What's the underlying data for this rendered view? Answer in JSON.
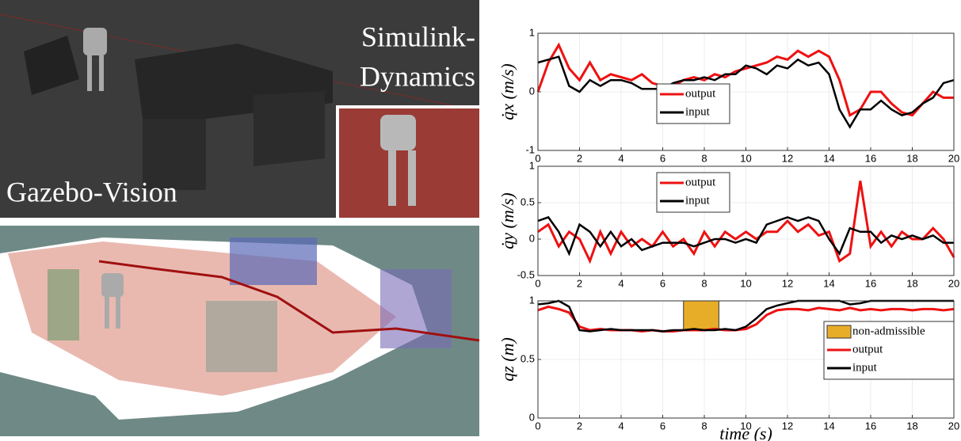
{
  "images": {
    "simulink_label": [
      "Simulink-",
      "Dynamics"
    ],
    "gazebo_label": "Gazebo-Vision"
  },
  "chart_data": [
    {
      "type": "line",
      "ylabel": "q̇x (m/s)",
      "legend": "lower center",
      "grid": true,
      "x": [
        0,
        0.5,
        1,
        1.5,
        2,
        2.5,
        3,
        3.5,
        4,
        4.5,
        5,
        5.5,
        6,
        6.5,
        7,
        7.5,
        8,
        8.5,
        9,
        9.5,
        10,
        10.5,
        11,
        11.5,
        12,
        12.5,
        13,
        13.5,
        14,
        14.5,
        15,
        15.5,
        16,
        16.5,
        17,
        17.5,
        18,
        18.5,
        19,
        19.5,
        20
      ],
      "xlim": [
        0,
        20
      ],
      "xticks": [
        0,
        2,
        4,
        6,
        8,
        10,
        12,
        14,
        16,
        18,
        20
      ],
      "ylim": [
        -1,
        1
      ],
      "yticks": [
        -1,
        0,
        1
      ],
      "series": [
        {
          "name": "output",
          "color": "#ee1111",
          "values": [
            0,
            0.5,
            0.8,
            0.4,
            0.2,
            0.5,
            0.2,
            0.3,
            0.25,
            0.2,
            0.3,
            0.15,
            0.1,
            0.1,
            0.2,
            0.25,
            0.2,
            0.3,
            0.25,
            0.35,
            0.4,
            0.45,
            0.5,
            0.6,
            0.55,
            0.7,
            0.6,
            0.7,
            0.6,
            0.2,
            -0.4,
            -0.3,
            0,
            0,
            -0.2,
            -0.35,
            -0.4,
            -0.2,
            0,
            -0.1,
            -0.1
          ]
        },
        {
          "name": "input",
          "color": "#000000",
          "values": [
            0.5,
            0.55,
            0.6,
            0.1,
            0,
            0.2,
            0.1,
            0.2,
            0.2,
            0.15,
            0.05,
            0.05,
            0.05,
            0.15,
            0.2,
            0.2,
            0.25,
            0.2,
            0.3,
            0.3,
            0.45,
            0.4,
            0.3,
            0.45,
            0.4,
            0.55,
            0.45,
            0.5,
            0.3,
            -0.3,
            -0.6,
            -0.3,
            -0.3,
            -0.15,
            -0.3,
            -0.4,
            -0.35,
            -0.2,
            -0.1,
            0.15,
            0.2
          ]
        }
      ]
    },
    {
      "type": "line",
      "ylabel": "q̇y (m/s)",
      "legend": "upper center",
      "grid": true,
      "x": [
        0,
        0.5,
        1,
        1.5,
        2,
        2.5,
        3,
        3.5,
        4,
        4.5,
        5,
        5.5,
        6,
        6.5,
        7,
        7.5,
        8,
        8.5,
        9,
        9.5,
        10,
        10.5,
        11,
        11.5,
        12,
        12.5,
        13,
        13.5,
        14,
        14.5,
        15,
        15.5,
        16,
        16.5,
        17,
        17.5,
        18,
        18.5,
        19,
        19.5,
        20
      ],
      "xlim": [
        0,
        20
      ],
      "xticks": [
        0,
        2,
        4,
        6,
        8,
        10,
        12,
        14,
        16,
        18,
        20
      ],
      "ylim": [
        -0.5,
        1
      ],
      "yticks": [
        -0.5,
        0,
        0.5,
        1
      ],
      "series": [
        {
          "name": "output",
          "color": "#ee1111",
          "values": [
            0.1,
            0.2,
            -0.1,
            0.1,
            0,
            -0.3,
            0.1,
            -0.2,
            0.1,
            -0.1,
            0,
            -0.1,
            0.1,
            -0.1,
            0,
            -0.2,
            0.1,
            -0.1,
            0.1,
            0,
            0.1,
            0,
            0.1,
            0.1,
            0.25,
            0.1,
            0.2,
            0.05,
            0.1,
            -0.3,
            -0.2,
            0.8,
            -0.1,
            0.1,
            -0.1,
            0.1,
            0,
            0,
            0.15,
            0,
            -0.25
          ]
        },
        {
          "name": "input",
          "color": "#000000",
          "values": [
            0.25,
            0.3,
            0.1,
            -0.2,
            0.2,
            0.1,
            -0.1,
            0.1,
            -0.1,
            0,
            -0.15,
            -0.1,
            -0.05,
            -0.05,
            -0.05,
            -0.1,
            -0.05,
            0,
            0,
            -0.05,
            0,
            -0.05,
            0.2,
            0.25,
            0.3,
            0.25,
            0.3,
            0.25,
            0,
            -0.2,
            0.15,
            0.1,
            0.1,
            -0.05,
            0.05,
            0,
            0.05,
            0,
            0.05,
            -0.05,
            -0.05
          ]
        }
      ]
    },
    {
      "type": "line",
      "ylabel": "qz (m)",
      "xlabel": "time (s)",
      "legend": "center right",
      "grid": true,
      "x": [
        0,
        0.5,
        1,
        1.5,
        2,
        2.5,
        3,
        3.5,
        4,
        4.5,
        5,
        5.5,
        6,
        6.5,
        7,
        7.5,
        8,
        8.5,
        9,
        9.5,
        10,
        10.5,
        11,
        11.5,
        12,
        12.5,
        13,
        13.5,
        14,
        14.5,
        15,
        15.5,
        16,
        16.5,
        17,
        17.5,
        18,
        18.5,
        19,
        19.5,
        20
      ],
      "xlim": [
        0,
        20
      ],
      "xticks": [
        0,
        2,
        4,
        6,
        8,
        10,
        12,
        14,
        16,
        18,
        20
      ],
      "ylim": [
        0,
        1
      ],
      "yticks": [
        0,
        0.5,
        1
      ],
      "regions": [
        {
          "name": "non-admissible",
          "color": "#e8ad28",
          "x": [
            7,
            8.7
          ],
          "y": [
            0.75,
            1
          ]
        }
      ],
      "series": [
        {
          "name": "output",
          "color": "#ee1111",
          "values": [
            0.92,
            0.95,
            0.93,
            0.9,
            0.78,
            0.75,
            0.76,
            0.75,
            0.75,
            0.75,
            0.74,
            0.75,
            0.74,
            0.74,
            0.75,
            0.75,
            0.75,
            0.76,
            0.75,
            0.75,
            0.76,
            0.8,
            0.88,
            0.92,
            0.93,
            0.93,
            0.92,
            0.94,
            0.93,
            0.92,
            0.94,
            0.92,
            0.93,
            0.92,
            0.93,
            0.93,
            0.92,
            0.93,
            0.93,
            0.92,
            0.93
          ]
        },
        {
          "name": "input",
          "color": "#000000",
          "values": [
            0.97,
            0.98,
            1,
            0.95,
            0.75,
            0.74,
            0.75,
            0.76,
            0.75,
            0.75,
            0.75,
            0.75,
            0.74,
            0.75,
            0.75,
            0.76,
            0.75,
            0.75,
            0.76,
            0.75,
            0.78,
            0.85,
            0.93,
            0.96,
            0.98,
            1,
            1,
            1,
            1,
            1,
            0.97,
            0.98,
            1,
            1,
            1,
            1,
            1,
            1,
            1,
            1,
            1
          ]
        }
      ]
    }
  ]
}
